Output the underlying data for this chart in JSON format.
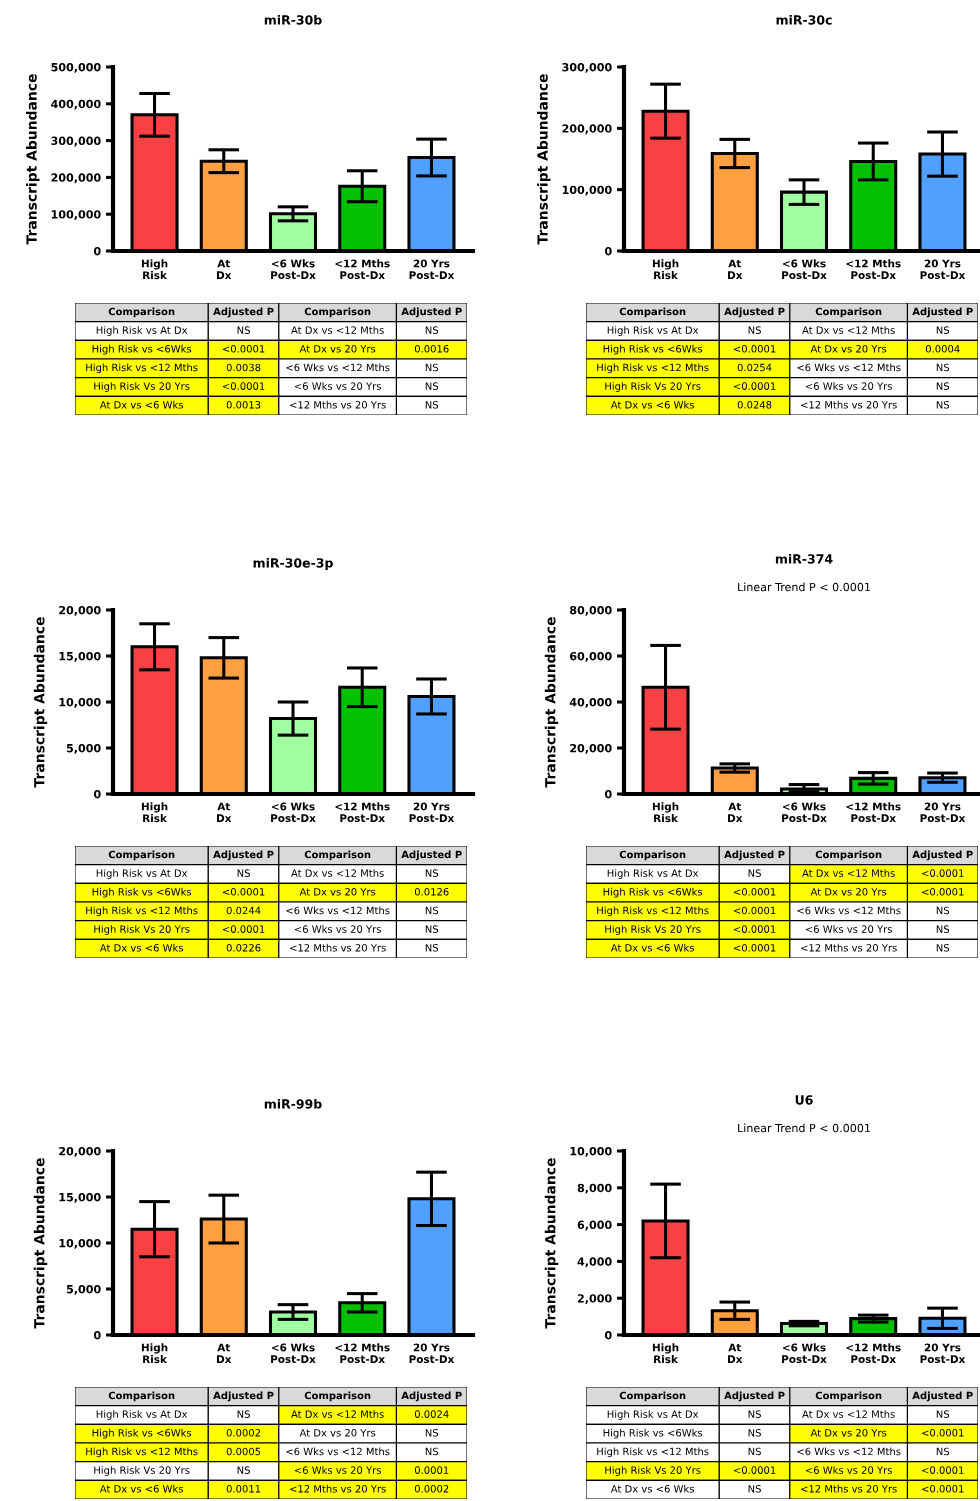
{
  "chart_data": [
    {
      "type": "bar",
      "title": "miR-30b",
      "ylabel": "Transcript Abundance",
      "categories": [
        "High\nRisk",
        "At\nDx",
        "<6 Wks\nPost-Dx",
        "<12 Mths\nPost-Dx",
        "20 Yrs\nPost-Dx"
      ],
      "colors": [
        "#f94144",
        "#ffa040",
        "#a0ffa0",
        "#00c000",
        "#50a0ff"
      ],
      "values": [
        370000,
        244000,
        101000,
        176000,
        254000
      ],
      "errors": [
        58000,
        31000,
        19000,
        42000,
        50000
      ],
      "ylim": [
        0,
        500000
      ],
      "yticks": [
        0,
        {
          "value": 100000,
          "label": "100,000"
        },
        {
          "value": 200000,
          "label": "200,000"
        },
        {
          "value": 300000,
          "label": "300,000"
        },
        {
          "value": 400000,
          "label": "400,000"
        },
        {
          "value": 500000,
          "label": "500,000"
        }
      ]
    },
    {
      "type": "other",
      "categories": [
        "Comparison",
        "Adjusted P",
        "Comparison",
        "Adjusted P"
      ],
      "cell_labels": [
        [
          "High Risk vs At Dx",
          "NS",
          "At Dx vs <12 Mths",
          "NS"
        ],
        [
          "High Risk vs <6Wks",
          "<0.0001",
          "At Dx vs 20 Yrs",
          "0.0016"
        ],
        [
          "High Risk vs <12 Mths",
          "0.0038",
          "<6 Wks vs <12 Mths",
          "NS"
        ],
        [
          "High Risk Vs 20 Yrs",
          "<0.0001",
          "<6 Wks vs 20 Yrs",
          "NS"
        ],
        [
          "At Dx vs <6 Wks",
          "0.0013",
          "<12 Mths vs 20 Yrs",
          "NS"
        ]
      ],
      "colors": [
        [
          "#ffffff",
          "#ffffff",
          "#ffffff",
          "#ffffff"
        ],
        [
          "#ffff00",
          "#ffff00",
          "#ffff00",
          "#ffff00"
        ],
        [
          "#ffff00",
          "#ffff00",
          "#ffffff",
          "#ffffff"
        ],
        [
          "#ffff00",
          "#ffff00",
          "#ffffff",
          "#ffffff"
        ],
        [
          "#ffff00",
          "#ffff00",
          "#ffffff",
          "#ffffff"
        ]
      ]
    },
    {
      "type": "bar",
      "title": "miR-30c",
      "ylabel": "Transcript Abundance",
      "categories": [
        "High\nRisk",
        "At\nDx",
        "<6 Wks\nPost-Dx",
        "<12 Mths\nPost-Dx",
        "20 Yrs\nPost-Dx"
      ],
      "colors": [
        "#f94144",
        "#ffa040",
        "#a0ffa0",
        "#00c000",
        "#50a0ff"
      ],
      "values": [
        228000,
        159000,
        96000,
        146000,
        158000
      ],
      "errors": [
        44000,
        23000,
        20000,
        30000,
        36000
      ],
      "ylim": [
        0,
        300000
      ],
      "yticks": [
        0,
        {
          "value": 100000,
          "label": "100,000"
        },
        {
          "value": 200000,
          "label": "200,000"
        },
        {
          "value": 300000,
          "label": "300,000"
        }
      ]
    },
    {
      "type": "other",
      "categories": [
        "Comparison",
        "Adjusted P",
        "Comparison",
        "Adjusted P"
      ],
      "cell_labels": [
        [
          "High Risk vs At Dx",
          "NS",
          "At Dx vs <12 Mths",
          "NS"
        ],
        [
          "High Risk vs <6Wks",
          "<0.0001",
          "At Dx vs 20 Yrs",
          "0.0004"
        ],
        [
          "High Risk vs <12 Mths",
          "0.0254",
          "<6 Wks vs <12 Mths",
          "NS"
        ],
        [
          "High Risk Vs 20 Yrs",
          "<0.0001",
          "<6 Wks vs 20 Yrs",
          "NS"
        ],
        [
          "At Dx vs <6 Wks",
          "0.0248",
          "<12 Mths vs 20 Yrs",
          "NS"
        ]
      ],
      "colors": [
        [
          "#ffffff",
          "#ffffff",
          "#ffffff",
          "#ffffff"
        ],
        [
          "#ffff00",
          "#ffff00",
          "#ffff00",
          "#ffff00"
        ],
        [
          "#ffff00",
          "#ffff00",
          "#ffffff",
          "#ffffff"
        ],
        [
          "#ffff00",
          "#ffff00",
          "#ffffff",
          "#ffffff"
        ],
        [
          "#ffff00",
          "#ffff00",
          "#ffffff",
          "#ffffff"
        ]
      ]
    },
    {
      "type": "bar",
      "title": "miR-30e-3p",
      "ylabel": "Transcript Abundance",
      "categories": [
        "High\nRisk",
        "At\nDx",
        "<6 Wks\nPost-Dx",
        "<12 Mths\nPost-Dx",
        "20 Yrs\nPost-Dx"
      ],
      "colors": [
        "#f94144",
        "#ffa040",
        "#a0ffa0",
        "#00c000",
        "#50a0ff"
      ],
      "values": [
        16000,
        14800,
        8200,
        11600,
        10600
      ],
      "errors": [
        2500,
        2200,
        1800,
        2100,
        1900
      ],
      "ylim": [
        0,
        20000
      ],
      "yticks": [
        0,
        {
          "value": 5000,
          "label": "5,000"
        },
        {
          "value": 10000,
          "label": "10,000"
        },
        {
          "value": 15000,
          "label": "15,000"
        },
        {
          "value": 20000,
          "label": "20,000"
        }
      ]
    },
    {
      "type": "other",
      "categories": [
        "Comparison",
        "Adjusted P",
        "Comparison",
        "Adjusted P"
      ],
      "cell_labels": [
        [
          "High Risk vs At Dx",
          "NS",
          "At Dx vs <12 Mths",
          "NS"
        ],
        [
          "High Risk vs <6Wks",
          "<0.0001",
          "At Dx vs 20 Yrs",
          "0.0126"
        ],
        [
          "High Risk vs <12 Mths",
          "0.0244",
          "<6 Wks vs <12 Mths",
          "NS"
        ],
        [
          "High Risk Vs 20 Yrs",
          "<0.0001",
          "<6 Wks vs 20 Yrs",
          "NS"
        ],
        [
          "At Dx vs <6 Wks",
          "0.0226",
          "<12 Mths vs 20 Yrs",
          "NS"
        ]
      ],
      "colors": [
        [
          "#ffffff",
          "#ffffff",
          "#ffffff",
          "#ffffff"
        ],
        [
          "#ffff00",
          "#ffff00",
          "#ffff00",
          "#ffff00"
        ],
        [
          "#ffff00",
          "#ffff00",
          "#ffffff",
          "#ffffff"
        ],
        [
          "#ffff00",
          "#ffff00",
          "#ffffff",
          "#ffffff"
        ],
        [
          "#ffff00",
          "#ffff00",
          "#ffffff",
          "#ffffff"
        ]
      ]
    },
    {
      "type": "bar",
      "title": "miR-374",
      "subtitle": "Linear Trend P < 0.0001",
      "ylabel": "Transcript Abundance",
      "categories": [
        "High\nRisk",
        "At\nDx",
        "<6 Wks\nPost-Dx",
        "<12 Mths\nPost-Dx",
        "20 Yrs\nPost-Dx"
      ],
      "colors": [
        "#f94144",
        "#ffa040",
        "#a0ffa0",
        "#00c000",
        "#50a0ff"
      ],
      "values": [
        46400,
        11300,
        2200,
        6800,
        7100
      ],
      "errors": [
        18200,
        1800,
        [
          1000,
          4100
        ],
        2500,
        2000
      ],
      "ylim": [
        0,
        80000
      ],
      "yticks": [
        0,
        {
          "value": 20000,
          "label": "20,000"
        },
        {
          "value": 40000,
          "label": "40,000"
        },
        {
          "value": 60000,
          "label": "60,000"
        },
        {
          "value": 80000,
          "label": "80,000"
        }
      ]
    },
    {
      "type": "other",
      "categories": [
        "Comparison",
        "Adjusted P",
        "Comparison",
        "Adjusted P"
      ],
      "cell_labels": [
        [
          "High Risk vs At Dx",
          "NS",
          "At Dx vs <12 Mths",
          "<0.0001"
        ],
        [
          "High Risk vs <6Wks",
          "<0.0001",
          "At Dx vs 20 Yrs",
          "<0.0001"
        ],
        [
          "High Risk vs <12 Mths",
          "<0.0001",
          "<6 Wks vs <12 Mths",
          "NS"
        ],
        [
          "High Risk Vs 20 Yrs",
          "<0.0001",
          "<6 Wks vs 20 Yrs",
          "NS"
        ],
        [
          "At Dx vs <6 Wks",
          "<0.0001",
          "<12 Mths vs 20 Yrs",
          "NS"
        ]
      ],
      "colors": [
        [
          "#ffffff",
          "#ffffff",
          "#ffff00",
          "#ffff00"
        ],
        [
          "#ffff00",
          "#ffff00",
          "#ffff00",
          "#ffff00"
        ],
        [
          "#ffff00",
          "#ffff00",
          "#ffffff",
          "#ffffff"
        ],
        [
          "#ffff00",
          "#ffff00",
          "#ffffff",
          "#ffffff"
        ],
        [
          "#ffff00",
          "#ffff00",
          "#ffffff",
          "#ffffff"
        ]
      ]
    },
    {
      "type": "bar",
      "title": "miR-99b",
      "ylabel": "Transcript Abundance",
      "categories": [
        "High\nRisk",
        "At\nDx",
        "<6 Wks\nPost-Dx",
        "<12 Mths\nPost-Dx",
        "20 Yrs\nPost-Dx"
      ],
      "colors": [
        "#f94144",
        "#ffa040",
        "#a0ffa0",
        "#00c000",
        "#50a0ff"
      ],
      "values": [
        11500,
        12600,
        2500,
        3500,
        14800
      ],
      "errors": [
        3000,
        2600,
        800,
        1000,
        2900
      ],
      "ylim": [
        0,
        20000
      ],
      "yticks": [
        0,
        {
          "value": 5000,
          "label": "5,000"
        },
        {
          "value": 10000,
          "label": "10,000"
        },
        {
          "value": 15000,
          "label": "15,000"
        },
        {
          "value": 20000,
          "label": "20,000"
        }
      ]
    },
    {
      "type": "other",
      "categories": [
        "Comparison",
        "Adjusted P",
        "Comparison",
        "Adjusted P"
      ],
      "cell_labels": [
        [
          "High Risk vs At Dx",
          "NS",
          "At Dx vs <12 Mths",
          "0.0024"
        ],
        [
          "High Risk vs <6Wks",
          "0.0002",
          "At Dx vs 20 Yrs",
          "NS"
        ],
        [
          "High Risk vs <12 Mths",
          "0.0005",
          "<6 Wks vs <12 Mths",
          "NS"
        ],
        [
          "High Risk Vs 20 Yrs",
          "NS",
          "<6 Wks vs 20 Yrs",
          "0.0001"
        ],
        [
          "At Dx vs <6 Wks",
          "0.0011",
          "<12 Mths vs 20 Yrs",
          "0.0002"
        ]
      ],
      "colors": [
        [
          "#ffffff",
          "#ffffff",
          "#ffff00",
          "#ffff00"
        ],
        [
          "#ffff00",
          "#ffff00",
          "#ffffff",
          "#ffffff"
        ],
        [
          "#ffff00",
          "#ffff00",
          "#ffffff",
          "#ffffff"
        ],
        [
          "#ffffff",
          "#ffffff",
          "#ffff00",
          "#ffff00"
        ],
        [
          "#ffff00",
          "#ffff00",
          "#ffff00",
          "#ffff00"
        ]
      ]
    },
    {
      "type": "bar",
      "title": "U6",
      "subtitle": "Linear Trend P < 0.0001",
      "ylabel": "Transcript Abundance",
      "categories": [
        "High\nRisk",
        "At\nDx",
        "<6 Wks\nPost-Dx",
        "<12 Mths\nPost-Dx",
        "20 Yrs\nPost-Dx"
      ],
      "colors": [
        "#f94144",
        "#ffa040",
        "#a0ffa0",
        "#00c000",
        "#50a0ff"
      ],
      "values": [
        6200,
        1320,
        620,
        890,
        910
      ],
      "errors": [
        2000,
        470,
        120,
        190,
        550
      ],
      "ylim": [
        0,
        10000
      ],
      "yticks": [
        0,
        {
          "value": 2000,
          "label": "2,000"
        },
        {
          "value": 4000,
          "label": "4,000"
        },
        {
          "value": 6000,
          "label": "6,000"
        },
        {
          "value": 8000,
          "label": "8,000"
        },
        {
          "value": 10000,
          "label": "10,000"
        }
      ]
    },
    {
      "type": "other",
      "categories": [
        "Comparison",
        "Adjusted P",
        "Comparison",
        "Adjusted P"
      ],
      "cell_labels": [
        [
          "High Risk vs At Dx",
          "NS",
          "At Dx vs <12 Mths",
          "NS"
        ],
        [
          "High Risk vs <6Wks",
          "NS",
          "At Dx vs 20 Yrs",
          "<0.0001"
        ],
        [
          "High Risk vs <12 Mths",
          "NS",
          "<6 Wks vs <12 Mths",
          "NS"
        ],
        [
          "High Risk Vs 20 Yrs",
          "<0.0001",
          "<6 Wks vs 20 Yrs",
          "<0.0001"
        ],
        [
          "At Dx vs <6 Wks",
          "NS",
          "<12 Mths vs 20 Yrs",
          "<0.0001"
        ]
      ],
      "colors": [
        [
          "#ffffff",
          "#ffffff",
          "#ffffff",
          "#ffffff"
        ],
        [
          "#ffffff",
          "#ffffff",
          "#ffff00",
          "#ffff00"
        ],
        [
          "#ffffff",
          "#ffffff",
          "#ffffff",
          "#ffffff"
        ],
        [
          "#ffff00",
          "#ffff00",
          "#ffff00",
          "#ffff00"
        ],
        [
          "#ffffff",
          "#ffffff",
          "#ffff00",
          "#ffff00"
        ]
      ]
    }
  ]
}
